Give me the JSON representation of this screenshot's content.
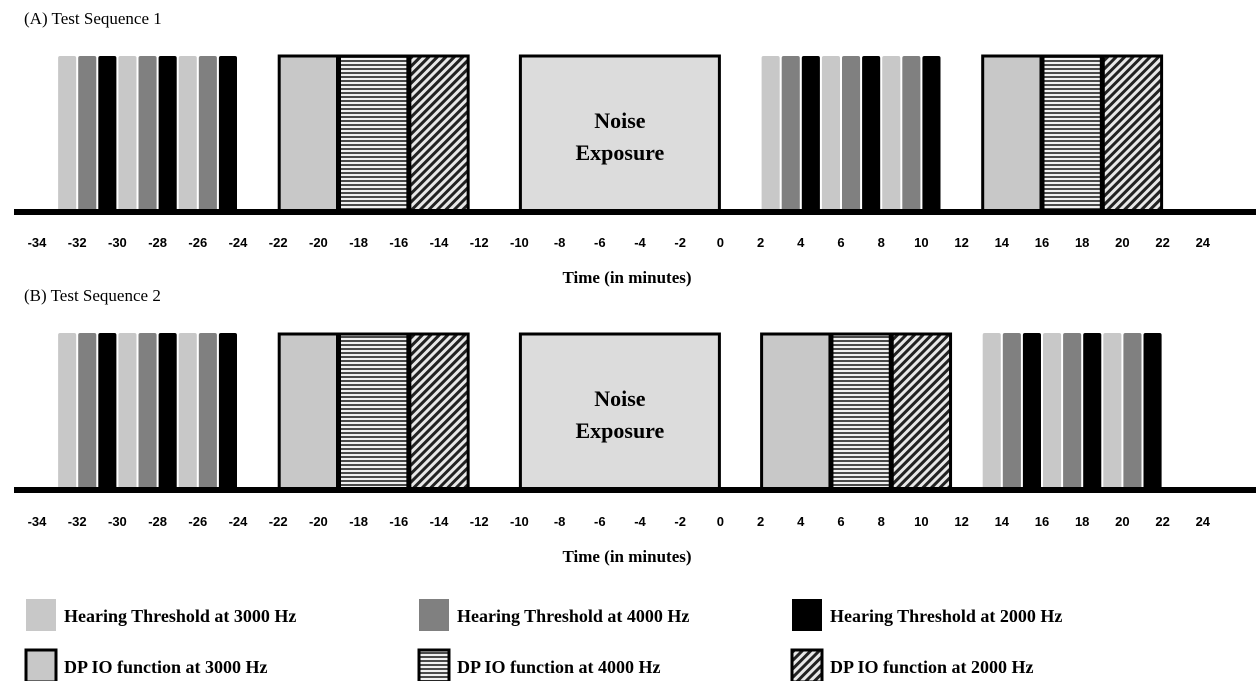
{
  "chart_data": {
    "type": "timeline",
    "xlabel": "Time (in minutes)",
    "xlim": [
      -34,
      24
    ],
    "ticks": [
      -34,
      -32,
      -30,
      -28,
      -26,
      -24,
      -22,
      -20,
      -18,
      -16,
      -14,
      -12,
      -10,
      -8,
      -6,
      -4,
      -2,
      0,
      2,
      4,
      6,
      8,
      10,
      12,
      14,
      16,
      18,
      20,
      22,
      24
    ],
    "noise_label": [
      "Noise",
      "Exposure"
    ],
    "legend": [
      {
        "key": "ht3000",
        "label": "Hearing Threshold at 3000 Hz",
        "color": "#c8c8c8"
      },
      {
        "key": "ht4000",
        "label": "Hearing Threshold at 4000 Hz",
        "color": "#808080"
      },
      {
        "key": "ht2000",
        "label": "Hearing Threshold at 2000 Hz",
        "color": "#000000"
      },
      {
        "key": "dp3000",
        "label": "DP IO function at 3000 Hz",
        "color": "#c8c8c8"
      },
      {
        "key": "dp4000",
        "label": "DP IO function at 4000 Hz",
        "pattern": "horizontal-lines"
      },
      {
        "key": "dp2000",
        "label": "DP IO function at 2000 Hz",
        "pattern": "diagonal-lines"
      }
    ],
    "panels": [
      {
        "title": "(A) Test Sequence 1",
        "segments": [
          {
            "type": "ht3000",
            "start": -33,
            "end": -32
          },
          {
            "type": "ht4000",
            "start": -32,
            "end": -31
          },
          {
            "type": "ht2000",
            "start": -31,
            "end": -30
          },
          {
            "type": "ht3000",
            "start": -30,
            "end": -29
          },
          {
            "type": "ht4000",
            "start": -29,
            "end": -28
          },
          {
            "type": "ht2000",
            "start": -28,
            "end": -27
          },
          {
            "type": "ht3000",
            "start": -27,
            "end": -26
          },
          {
            "type": "ht4000",
            "start": -26,
            "end": -25
          },
          {
            "type": "ht2000",
            "start": -25,
            "end": -24
          },
          {
            "type": "dp3000",
            "start": -22,
            "end": -19
          },
          {
            "type": "dp4000",
            "start": -19,
            "end": -15.5
          },
          {
            "type": "dp2000",
            "start": -15.5,
            "end": -12.5
          },
          {
            "type": "noise",
            "start": -10,
            "end": 0
          },
          {
            "type": "ht3000",
            "start": 2,
            "end": 3
          },
          {
            "type": "ht4000",
            "start": 3,
            "end": 4
          },
          {
            "type": "ht2000",
            "start": 4,
            "end": 5
          },
          {
            "type": "ht3000",
            "start": 5,
            "end": 6
          },
          {
            "type": "ht4000",
            "start": 6,
            "end": 7
          },
          {
            "type": "ht2000",
            "start": 7,
            "end": 8
          },
          {
            "type": "ht3000",
            "start": 8,
            "end": 9
          },
          {
            "type": "ht4000",
            "start": 9,
            "end": 10
          },
          {
            "type": "ht2000",
            "start": 10,
            "end": 11
          },
          {
            "type": "dp3000",
            "start": 13,
            "end": 16
          },
          {
            "type": "dp4000",
            "start": 16,
            "end": 19
          },
          {
            "type": "dp2000",
            "start": 19,
            "end": 22
          }
        ]
      },
      {
        "title": "(B) Test Sequence 2",
        "segments": [
          {
            "type": "ht3000",
            "start": -33,
            "end": -32
          },
          {
            "type": "ht4000",
            "start": -32,
            "end": -31
          },
          {
            "type": "ht2000",
            "start": -31,
            "end": -30
          },
          {
            "type": "ht3000",
            "start": -30,
            "end": -29
          },
          {
            "type": "ht4000",
            "start": -29,
            "end": -28
          },
          {
            "type": "ht2000",
            "start": -28,
            "end": -27
          },
          {
            "type": "ht3000",
            "start": -27,
            "end": -26
          },
          {
            "type": "ht4000",
            "start": -26,
            "end": -25
          },
          {
            "type": "ht2000",
            "start": -25,
            "end": -24
          },
          {
            "type": "dp3000",
            "start": -22,
            "end": -19
          },
          {
            "type": "dp4000",
            "start": -19,
            "end": -15.5
          },
          {
            "type": "dp2000",
            "start": -15.5,
            "end": -12.5
          },
          {
            "type": "noise",
            "start": -10,
            "end": 0
          },
          {
            "type": "dp3000",
            "start": 2,
            "end": 5.5
          },
          {
            "type": "dp4000",
            "start": 5.5,
            "end": 8.5
          },
          {
            "type": "dp2000",
            "start": 8.5,
            "end": 11.5
          },
          {
            "type": "ht3000",
            "start": 13,
            "end": 14
          },
          {
            "type": "ht4000",
            "start": 14,
            "end": 15
          },
          {
            "type": "ht2000",
            "start": 15,
            "end": 16
          },
          {
            "type": "ht3000",
            "start": 16,
            "end": 17
          },
          {
            "type": "ht4000",
            "start": 17,
            "end": 18
          },
          {
            "type": "ht2000",
            "start": 18,
            "end": 19
          },
          {
            "type": "ht3000",
            "start": 19,
            "end": 20
          },
          {
            "type": "ht4000",
            "start": 20,
            "end": 21
          },
          {
            "type": "ht2000",
            "start": 21,
            "end": 22
          }
        ]
      }
    ]
  }
}
